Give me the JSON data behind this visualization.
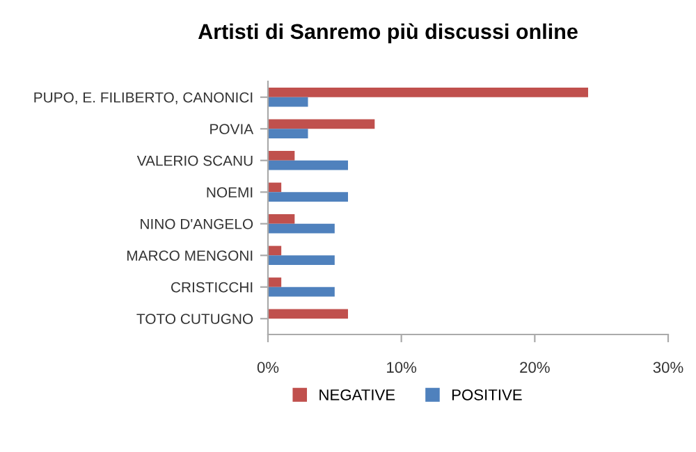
{
  "chart_data": {
    "type": "bar",
    "orientation": "horizontal",
    "title": "Artisti di Sanremo più discussi online",
    "categories": [
      "PUPO, E. FILIBERTO, CANONICI",
      "POVIA",
      "VALERIO SCANU",
      "NOEMI",
      "NINO D'ANGELO",
      "MARCO MENGONI",
      "CRISTICCHI",
      "TOTO CUTUGNO"
    ],
    "series": [
      {
        "name": "NEGATIVE",
        "color": "#c0504d",
        "values": [
          24,
          8,
          2,
          1,
          2,
          1,
          1,
          6
        ]
      },
      {
        "name": "POSITIVE",
        "color": "#4f81bd",
        "values": [
          3,
          3,
          6,
          6,
          5,
          5,
          5,
          null
        ]
      }
    ],
    "xlim": [
      0,
      30
    ],
    "xticks": [
      {
        "value": 0,
        "label": "0%"
      },
      {
        "value": 10,
        "label": "10%"
      },
      {
        "value": 20,
        "label": "20%"
      },
      {
        "value": 30,
        "label": "30%"
      }
    ],
    "grid": false,
    "legend": "bottom"
  }
}
